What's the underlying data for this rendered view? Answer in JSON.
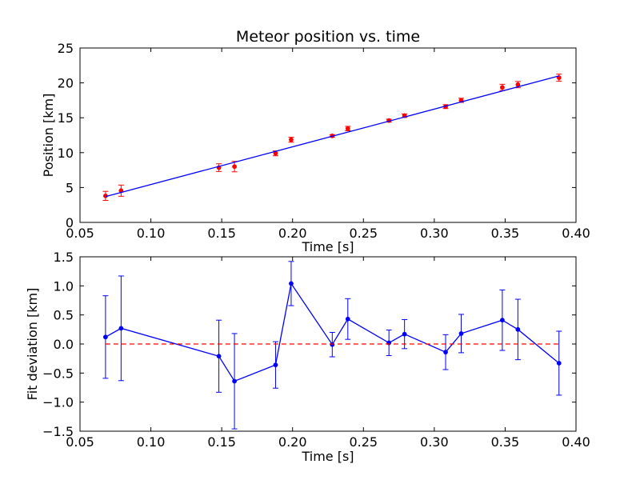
{
  "chart_data": [
    {
      "type": "scatter",
      "title": "Meteor position vs. time",
      "xlabel": "Time [s]",
      "ylabel": "Position [km]",
      "xlim": [
        0.05,
        0.4
      ],
      "ylim": [
        0,
        25
      ],
      "x_ticks": [
        "0.05",
        "0.10",
        "0.15",
        "0.20",
        "0.25",
        "0.30",
        "0.35",
        "0.40"
      ],
      "y_ticks": [
        "0",
        "5",
        "10",
        "15",
        "20",
        "25"
      ],
      "grid": false,
      "series": [
        {
          "kind": "errorbar-points",
          "color": "#ff0000",
          "errorbar_color": "#ff0000",
          "x": [
            0.068,
            0.079,
            0.148,
            0.159,
            0.188,
            0.199,
            0.228,
            0.239,
            0.268,
            0.279,
            0.308,
            0.319,
            0.348,
            0.359,
            0.388
          ],
          "y": [
            3.8,
            4.55,
            7.85,
            8.0,
            9.9,
            11.85,
            12.4,
            13.45,
            14.6,
            15.3,
            16.6,
            17.5,
            19.35,
            19.75,
            20.75
          ],
          "yerr": [
            0.65,
            0.8,
            0.55,
            0.75,
            0.35,
            0.35,
            0.18,
            0.32,
            0.2,
            0.25,
            0.28,
            0.3,
            0.45,
            0.45,
            0.5
          ]
        },
        {
          "kind": "fit-line",
          "color": "#0000ff",
          "x": [
            0.068,
            0.388
          ],
          "y": [
            3.7,
            21.0
          ]
        }
      ]
    },
    {
      "type": "line",
      "title": "",
      "xlabel": "Time [s]",
      "ylabel": "Fit deviation [km]",
      "xlim": [
        0.05,
        0.4
      ],
      "ylim": [
        -1.5,
        1.5
      ],
      "x_ticks": [
        "0.05",
        "0.10",
        "0.15",
        "0.20",
        "0.25",
        "0.30",
        "0.35",
        "0.40"
      ],
      "y_ticks": [
        "−1.5",
        "−1.0",
        "−0.5",
        "0.0",
        "0.5",
        "1.0",
        "1.5"
      ],
      "y_tick_values": [
        -1.5,
        -1.0,
        -0.5,
        0.0,
        0.5,
        1.0,
        1.5
      ],
      "grid": false,
      "series": [
        {
          "kind": "errorbar-line",
          "color": "#0000ff",
          "x": [
            0.068,
            0.079,
            0.148,
            0.159,
            0.188,
            0.199,
            0.228,
            0.239,
            0.268,
            0.279,
            0.308,
            0.319,
            0.348,
            0.359,
            0.388
          ],
          "y": [
            0.12,
            0.27,
            -0.21,
            -0.64,
            -0.36,
            1.04,
            -0.01,
            0.43,
            0.02,
            0.17,
            -0.14,
            0.18,
            0.41,
            0.25,
            -0.33
          ],
          "yerr": [
            0.71,
            0.9,
            0.62,
            0.82,
            0.4,
            0.38,
            0.21,
            0.35,
            0.22,
            0.25,
            0.3,
            0.33,
            0.52,
            0.52,
            0.55
          ]
        },
        {
          "kind": "reference-line",
          "color": "#ff0000",
          "style": "dashed",
          "x": [
            0.068,
            0.388
          ],
          "y": [
            0.0,
            0.0
          ]
        }
      ]
    }
  ]
}
